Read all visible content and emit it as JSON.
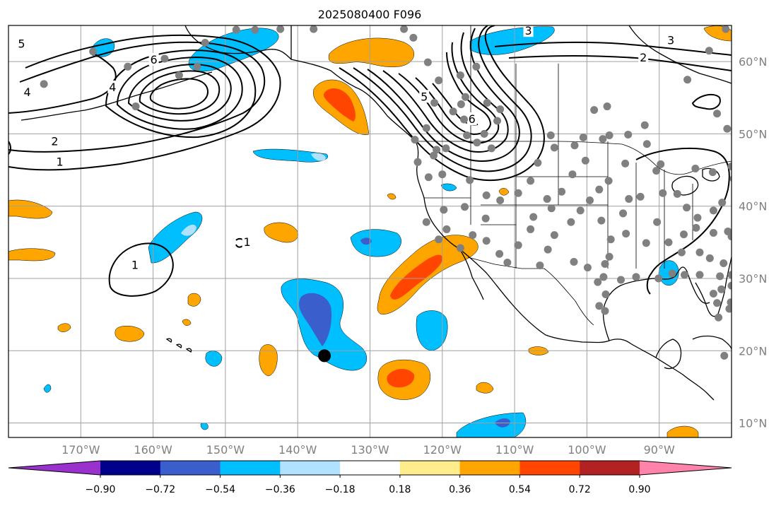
{
  "title": "2025080400 F096",
  "map": {
    "projection": "Plate Carree",
    "extent_lon": [
      -180,
      -80
    ],
    "extent_lat": [
      8,
      65
    ],
    "lat_ticks": [
      {
        "value": 10,
        "label": "10°N"
      },
      {
        "value": 20,
        "label": "20°N"
      },
      {
        "value": 30,
        "label": "30°N"
      },
      {
        "value": 40,
        "label": "40°N"
      },
      {
        "value": 50,
        "label": "50°N"
      },
      {
        "value": 60,
        "label": "60°N"
      }
    ],
    "lon_ticks": [
      {
        "value": -170,
        "label": "170°W"
      },
      {
        "value": -160,
        "label": "160°W"
      },
      {
        "value": -150,
        "label": "150°W"
      },
      {
        "value": -140,
        "label": "140°W"
      },
      {
        "value": -130,
        "label": "130°W"
      },
      {
        "value": -120,
        "label": "120°W"
      },
      {
        "value": -110,
        "label": "110°W"
      },
      {
        "value": -100,
        "label": "100°W"
      },
      {
        "value": -90,
        "label": "90°W"
      }
    ],
    "grid": true,
    "contour_labels": [
      {
        "text": "1",
        "lon": -162.5,
        "lat": 31.8
      },
      {
        "text": "1",
        "lon": -172.9,
        "lat": 46.1
      },
      {
        "text": "2",
        "lon": -173.6,
        "lat": 48.9
      },
      {
        "text": "4",
        "lon": -177.4,
        "lat": 55.7
      },
      {
        "text": "4",
        "lon": -165.6,
        "lat": 56.4
      },
      {
        "text": "6",
        "lon": -159.9,
        "lat": 60.2
      },
      {
        "text": "5",
        "lon": -178.2,
        "lat": 62.4
      },
      {
        "text": "5",
        "lon": -122.5,
        "lat": 55.1
      },
      {
        "text": "6",
        "lon": -115.9,
        "lat": 52.0
      },
      {
        "text": "3",
        "lon": -108.1,
        "lat": 64.2
      },
      {
        "text": "3",
        "lon": -88.4,
        "lat": 62.9
      },
      {
        "text": "2",
        "lon": -92.2,
        "lat": 60.5
      },
      {
        "text": "1",
        "lon": -147.0,
        "lat": 35.0
      }
    ],
    "marker": {
      "lon": -136.3,
      "lat": 19.3,
      "color": "#000000"
    },
    "station_color": "#808080",
    "stations": [
      [
        -175.1,
        56.9
      ],
      [
        -168.3,
        61.4
      ],
      [
        -163.5,
        59.3
      ],
      [
        -162.4,
        53.8
      ],
      [
        -158.4,
        60.4
      ],
      [
        -156.4,
        58.1
      ],
      [
        -153.9,
        59.3
      ],
      [
        -152.8,
        62.6
      ],
      [
        -148.5,
        64.4
      ],
      [
        -145.9,
        64.4
      ],
      [
        -142.4,
        64.5
      ],
      [
        -137.8,
        64.5
      ],
      [
        -125.3,
        64.5
      ],
      [
        -124.0,
        63.3
      ],
      [
        -122.0,
        59.9
      ],
      [
        -120.5,
        57.4
      ],
      [
        -117.5,
        58.1
      ],
      [
        -115.3,
        59.3
      ],
      [
        -116.8,
        55.1
      ],
      [
        -117.4,
        54.1
      ],
      [
        -118.5,
        53.1
      ],
      [
        -121.1,
        54.3
      ],
      [
        -117.0,
        52.0
      ],
      [
        -113.8,
        54.3
      ],
      [
        -112.0,
        53.4
      ],
      [
        -112.4,
        51.8
      ],
      [
        -114.2,
        50.0
      ],
      [
        -116.6,
        49.8
      ],
      [
        -115.2,
        48.8
      ],
      [
        -113.2,
        48.0
      ],
      [
        -119.5,
        48.0
      ],
      [
        -123.8,
        49.2
      ],
      [
        -122.2,
        50.8
      ],
      [
        -121.2,
        47.0
      ],
      [
        -120.8,
        47.8
      ],
      [
        -123.4,
        46.1
      ],
      [
        -121.9,
        44.0
      ],
      [
        -120.0,
        44.4
      ],
      [
        -116.2,
        43.6
      ],
      [
        -113.9,
        41.5
      ],
      [
        -112.0,
        40.8
      ],
      [
        -109.5,
        41.8
      ],
      [
        -107.8,
        43.5
      ],
      [
        -106.8,
        46.0
      ],
      [
        -104.5,
        48.1
      ],
      [
        -101.7,
        48.4
      ],
      [
        -100.5,
        49.5
      ],
      [
        -105.0,
        49.8
      ],
      [
        -97.8,
        49.3
      ],
      [
        -96.9,
        49.8
      ],
      [
        -92.0,
        51.2
      ],
      [
        -97.2,
        53.8
      ],
      [
        -99.0,
        53.3
      ],
      [
        -94.3,
        49.9
      ],
      [
        -91.7,
        48.6
      ],
      [
        -90.4,
        44.9
      ],
      [
        -89.8,
        45.8
      ],
      [
        -85.0,
        45.2
      ],
      [
        -82.6,
        44.7
      ],
      [
        -80.0,
        45.5
      ],
      [
        -79.7,
        43.8
      ],
      [
        -79.0,
        42.5
      ],
      [
        -80.6,
        50.7
      ],
      [
        -82.0,
        52.8
      ],
      [
        -86.1,
        57.5
      ],
      [
        -83.1,
        61.5
      ],
      [
        -80.8,
        64.5
      ],
      [
        -94.7,
        45.9
      ],
      [
        -97.0,
        43.5
      ],
      [
        -98.3,
        42.3
      ],
      [
        -99.6,
        40.8
      ],
      [
        -100.2,
        46.3
      ],
      [
        -102.0,
        44.4
      ],
      [
        -103.5,
        42.0
      ],
      [
        -104.9,
        39.7
      ],
      [
        -105.5,
        41.0
      ],
      [
        -107.4,
        38.5
      ],
      [
        -107.8,
        36.8
      ],
      [
        -104.5,
        36.0
      ],
      [
        -102.2,
        37.8
      ],
      [
        -100.9,
        39.4
      ],
      [
        -98.0,
        38.0
      ],
      [
        -95.0,
        39.0
      ],
      [
        -94.2,
        41.0
      ],
      [
        -92.6,
        41.3
      ],
      [
        -89.5,
        41.8
      ],
      [
        -87.5,
        41.7
      ],
      [
        -86.2,
        39.8
      ],
      [
        -84.7,
        38.4
      ],
      [
        -82.5,
        39.4
      ],
      [
        -81.3,
        40.5
      ],
      [
        -79.2,
        40.5
      ],
      [
        -80.5,
        36.5
      ],
      [
        -82.5,
        36.3
      ],
      [
        -84.9,
        37.0
      ],
      [
        -86.6,
        36.1
      ],
      [
        -88.7,
        35.0
      ],
      [
        -90.3,
        37.8
      ],
      [
        -91.8,
        34.9
      ],
      [
        -94.6,
        36.2
      ],
      [
        -96.7,
        35.4
      ],
      [
        -96.9,
        33.0
      ],
      [
        -97.5,
        32.0
      ],
      [
        -99.9,
        31.5
      ],
      [
        -101.8,
        32.3
      ],
      [
        -106.5,
        31.8
      ],
      [
        -105.4,
        34.0
      ],
      [
        -109.5,
        34.6
      ],
      [
        -112.1,
        33.4
      ],
      [
        -111.0,
        32.2
      ],
      [
        -113.9,
        35.2
      ],
      [
        -114.0,
        38.3
      ],
      [
        -115.8,
        36.0
      ],
      [
        -116.9,
        39.9
      ],
      [
        -119.8,
        39.5
      ],
      [
        -119.4,
        36.8
      ],
      [
        -117.5,
        34.2
      ],
      [
        -120.5,
        35.4
      ],
      [
        -122.2,
        37.8
      ],
      [
        -95.3,
        29.8
      ],
      [
        -93.2,
        30.2
      ],
      [
        -90.1,
        30.0
      ],
      [
        -86.5,
        30.5
      ],
      [
        -84.4,
        30.5
      ],
      [
        -83.0,
        32.8
      ],
      [
        -84.4,
        33.6
      ],
      [
        -81.1,
        32.1
      ],
      [
        -81.6,
        30.3
      ],
      [
        -82.5,
        27.9
      ],
      [
        -81.4,
        28.5
      ],
      [
        -80.3,
        25.8
      ],
      [
        -81.8,
        24.6
      ],
      [
        -80.1,
        26.7
      ],
      [
        -82.0,
        26.6
      ],
      [
        -80.0,
        29.0
      ],
      [
        -97.7,
        30.2
      ],
      [
        -98.5,
        29.5
      ],
      [
        -97.4,
        27.8
      ],
      [
        -98.3,
        26.2
      ],
      [
        -97.5,
        25.5
      ],
      [
        -86.9,
        33.6
      ],
      [
        -88.2,
        30.7
      ],
      [
        -80.0,
        35.8
      ],
      [
        -80.0,
        30.5
      ],
      [
        -81.0,
        19.3
      ]
    ]
  },
  "colorbar": {
    "ticks": [
      "−0.90",
      "−0.72",
      "−0.54",
      "−0.36",
      "−0.18",
      "0.18",
      "0.36",
      "0.54",
      "0.72",
      "0.90"
    ],
    "bins": [
      {
        "color": "#9932cc"
      },
      {
        "color": "#00008b"
      },
      {
        "color": "#3a5fcd"
      },
      {
        "color": "#00bfff"
      },
      {
        "color": "#b0e2ff"
      },
      {
        "color": "#ffffff"
      },
      {
        "color": "#ffec8b"
      },
      {
        "color": "#ffa500"
      },
      {
        "color": "#ff4500"
      },
      {
        "color": "#b22222"
      },
      {
        "color": "#ff83aa"
      }
    ]
  },
  "colors": {
    "coastline": "#000000",
    "gridline": "#a0a0a0",
    "contour": "#000000"
  }
}
